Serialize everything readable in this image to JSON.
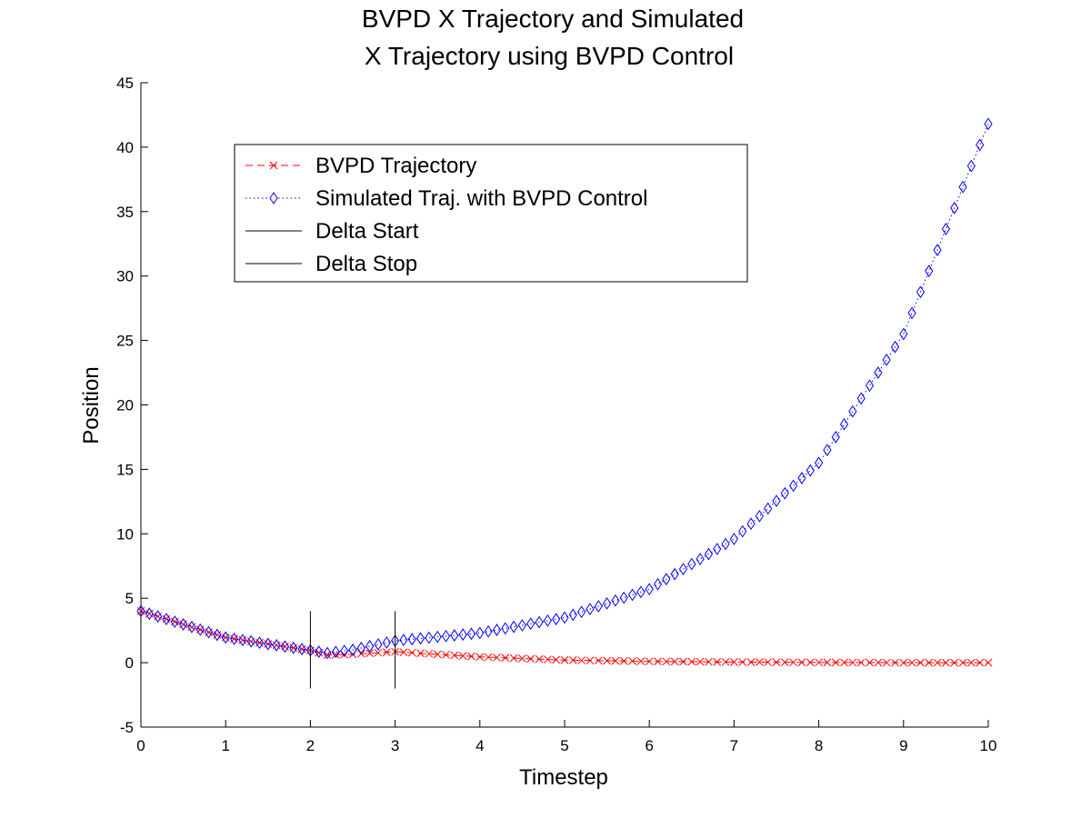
{
  "chart_data": {
    "type": "line",
    "title": [
      "BVPD X Trajectory and Simulated",
      "X Trajectory using BVPD Control"
    ],
    "xlabel": "Timestep",
    "ylabel": "Position",
    "xlim": [
      0,
      10
    ],
    "ylim": [
      -5,
      45
    ],
    "xticks": [
      0,
      1,
      2,
      3,
      4,
      5,
      6,
      7,
      8,
      9,
      10
    ],
    "yticks": [
      -5,
      0,
      5,
      10,
      15,
      20,
      25,
      30,
      35,
      40,
      45
    ],
    "grid": false,
    "legend_position": "top-left inside",
    "colors": {
      "bvpd": "#ff0000",
      "simulated": "#0000ff",
      "delta": "#000000"
    },
    "series": [
      {
        "name": "BVPD Trajectory",
        "marker": "x",
        "linestyle": "dashed",
        "x_range": [
          0,
          10
        ],
        "n_points": 101,
        "x_sample": [
          0,
          1,
          2,
          2.2,
          2.5,
          3,
          4,
          5,
          6,
          7,
          8,
          9,
          10
        ],
        "y_sample": [
          4.0,
          1.95,
          0.95,
          0.6,
          0.65,
          0.85,
          0.45,
          0.2,
          0.1,
          0.05,
          0.02,
          0.0,
          0.0
        ]
      },
      {
        "name": "Simulated Traj. with BVPD Control",
        "marker": "diamond",
        "linestyle": "dotted",
        "x_range": [
          0,
          10
        ],
        "n_points": 101,
        "x_sample": [
          0,
          1,
          2,
          2.2,
          2.5,
          3,
          4,
          5,
          6,
          7,
          8,
          9,
          10
        ],
        "y_sample": [
          4.0,
          1.95,
          0.95,
          0.75,
          1.0,
          1.7,
          2.3,
          3.5,
          5.7,
          9.6,
          15.5,
          25.5,
          41.8
        ]
      },
      {
        "name": "Delta Start",
        "type": "vline",
        "x": 2,
        "y_range": [
          -2,
          4
        ]
      },
      {
        "name": "Delta Stop",
        "type": "vline",
        "x": 3,
        "y_range": [
          -2,
          4
        ]
      }
    ]
  }
}
